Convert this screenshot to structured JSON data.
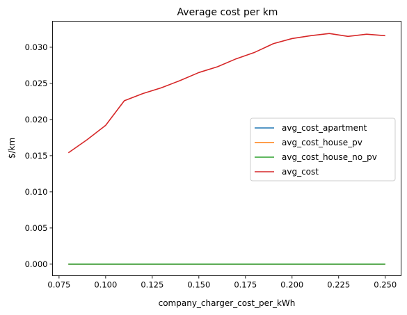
{
  "chart_data": {
    "type": "line",
    "title": "Average cost per km",
    "xlabel": "company_charger_cost_per_kWh",
    "ylabel": "$/km",
    "xlim": [
      0.0715,
      0.2585
    ],
    "ylim": [
      -0.0016,
      0.0336
    ],
    "xticks": [
      0.075,
      0.1,
      0.125,
      0.15,
      0.175,
      0.2,
      0.225,
      0.25
    ],
    "xtick_labels": [
      "0.075",
      "0.100",
      "0.125",
      "0.150",
      "0.175",
      "0.200",
      "0.225",
      "0.250"
    ],
    "yticks": [
      0.0,
      0.005,
      0.01,
      0.015,
      0.02,
      0.025,
      0.03
    ],
    "ytick_labels": [
      "0.000",
      "0.005",
      "0.010",
      "0.015",
      "0.020",
      "0.025",
      "0.030"
    ],
    "grid": false,
    "legend_position": "center-right",
    "x": [
      0.08,
      0.09,
      0.1,
      0.11,
      0.12,
      0.13,
      0.14,
      0.15,
      0.16,
      0.17,
      0.18,
      0.19,
      0.2,
      0.21,
      0.22,
      0.23,
      0.24,
      0.25
    ],
    "series": [
      {
        "name": "avg_cost_apartment",
        "color": "#1f77b4",
        "values": [
          0,
          0,
          0,
          0,
          0,
          0,
          0,
          0,
          0,
          0,
          0,
          0,
          0,
          0,
          0,
          0,
          0,
          0
        ]
      },
      {
        "name": "avg_cost_house_pv",
        "color": "#ff7f0e",
        "values": [
          0,
          0,
          0,
          0,
          0,
          0,
          0,
          0,
          0,
          0,
          0,
          0,
          0,
          0,
          0,
          0,
          0,
          0
        ]
      },
      {
        "name": "avg_cost_house_no_pv",
        "color": "#2ca02c",
        "values": [
          0,
          0,
          0,
          0,
          0,
          0,
          0,
          0,
          0,
          0,
          0,
          0,
          0,
          0,
          0,
          0,
          0,
          0
        ]
      },
      {
        "name": "avg_cost",
        "color": "#d62728",
        "values": [
          0.0154,
          0.0172,
          0.0192,
          0.0226,
          0.0236,
          0.0244,
          0.0254,
          0.0265,
          0.0273,
          0.0284,
          0.0293,
          0.0305,
          0.0312,
          0.0316,
          0.0319,
          0.0315,
          0.0318,
          0.0316
        ]
      }
    ]
  }
}
